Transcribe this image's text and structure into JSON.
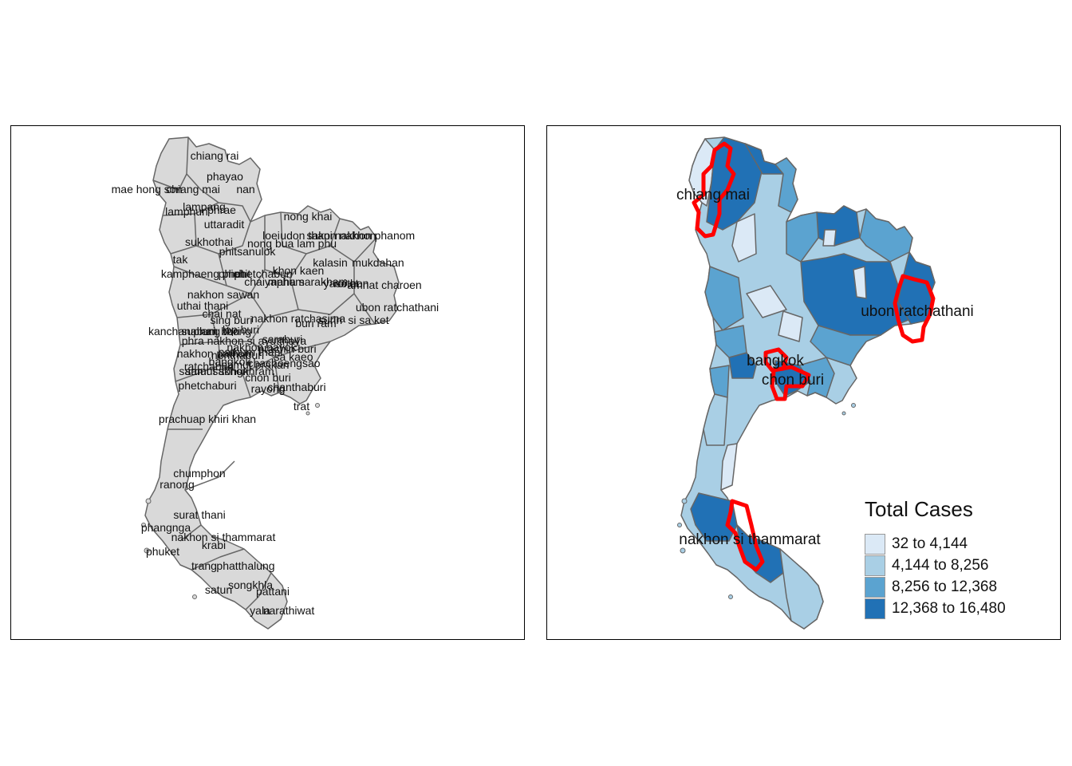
{
  "left_map": {
    "province_labels": [
      "chiang rai",
      "phayao",
      "mae hong son",
      "chiang mai",
      "nan",
      "lampang",
      "lamphun",
      "phrae",
      "uttaradit",
      "nong khai",
      "loei",
      "udon thani",
      "sakon nakhon",
      "nakhon phanom",
      "sukhothai",
      "nong bua lam phu",
      "phitsanulok",
      "tak",
      "kalasin",
      "mukdahan",
      "khon kaen",
      "kamphaeng phet",
      "phichit",
      "phetchabun",
      "chaiyaphum",
      "maha sarakham",
      "roi et",
      "yasothon",
      "amnat charoen",
      "nakhon sawan",
      "uthai thani",
      "ubon ratchathani",
      "chai nat",
      "sing buri",
      "nakhon ratchasima",
      "buri ram",
      "surin",
      "si sa ket",
      "kanchanaburi",
      "suphan buri",
      "lop buri",
      "ang thong",
      "phra nakhon si ayutthaya",
      "saraburi",
      "nakhon nayok",
      "prachin buri",
      "sa kaeo",
      "nakhon pathom",
      "pathum thani",
      "nonthaburi",
      "bangkok",
      "ratchaburi",
      "samut prakan",
      "samut sakhon",
      "samut songkhram",
      "chachoengsao",
      "chon buri",
      "phetchaburi",
      "rayong",
      "chanthaburi",
      "trat",
      "prachuap khiri khan",
      "chumphon",
      "ranong",
      "surat thani",
      "phangnga",
      "nakhon si thammarat",
      "krabi",
      "phuket",
      "trang",
      "phatthalung",
      "satun",
      "songkhla",
      "pattani",
      "yala",
      "narathiwat"
    ]
  },
  "right_map": {
    "highlight_labels": [
      "chiang mai",
      "ubon ratchathani",
      "bangkok",
      "chon buri",
      "nakhon si thammarat"
    ],
    "highlight_color": "#ff0000"
  },
  "legend": {
    "title": "Total Cases",
    "items": [
      {
        "label": "32 to 4,144",
        "color": "#dbe9f6"
      },
      {
        "label": "4,144 to 8,256",
        "color": "#a9cfe5"
      },
      {
        "label": "8,256 to 12,368",
        "color": "#5ba3d0"
      },
      {
        "label": "12,368 to 16,480",
        "color": "#2171b5"
      }
    ]
  },
  "colors": {
    "province_fill_left": "#d9d9d9",
    "province_border": "#666666",
    "frame": "#000000"
  }
}
